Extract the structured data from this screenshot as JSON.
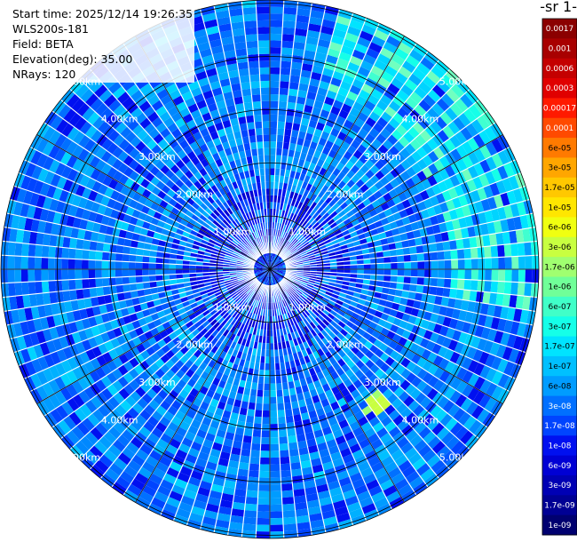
{
  "header": {
    "start_time": "Start time: 2025/12/14 19:26:35",
    "instrument": "WLS200s-181",
    "field": "Field: BETA",
    "elevation": "Elevation(deg): 35.00",
    "nrays": "NRays: 120"
  },
  "colorbar": {
    "units_label": "-1 sr-",
    "levels": [
      {
        "label": "0.0017",
        "color": "#8b0000"
      },
      {
        "label": "0.001",
        "color": "#a80000"
      },
      {
        "label": "0.0006",
        "color": "#c40000"
      },
      {
        "label": "0.0003",
        "color": "#e00000"
      },
      {
        "label": "0.00017",
        "color": "#ff1a00"
      },
      {
        "label": "0.0001",
        "color": "#ff4a00"
      },
      {
        "label": "6e-05",
        "color": "#ff7a00"
      },
      {
        "label": "3e-05",
        "color": "#ffa600"
      },
      {
        "label": "1.7e-05",
        "color": "#ffc800"
      },
      {
        "label": "1e-05",
        "color": "#ffe600"
      },
      {
        "label": "6e-06",
        "color": "#f0ff10"
      },
      {
        "label": "3e-06",
        "color": "#c8ff40"
      },
      {
        "label": "1.7e-06",
        "color": "#a0ff70"
      },
      {
        "label": "1e-06",
        "color": "#70ff98"
      },
      {
        "label": "6e-07",
        "color": "#40ffc8"
      },
      {
        "label": "3e-07",
        "color": "#15ffe8"
      },
      {
        "label": "1.7e-07",
        "color": "#00e4ff"
      },
      {
        "label": "1e-07",
        "color": "#00c0ff"
      },
      {
        "label": "6e-08",
        "color": "#009cff"
      },
      {
        "label": "3e-08",
        "color": "#0070ff"
      },
      {
        "label": "1.7e-08",
        "color": "#0044ff"
      },
      {
        "label": "1e-08",
        "color": "#0010f0"
      },
      {
        "label": "6e-09",
        "color": "#0000d4"
      },
      {
        "label": "3e-09",
        "color": "#0000b4"
      },
      {
        "label": "1.7e-09",
        "color": "#000094"
      },
      {
        "label": "1e-09",
        "color": "#000070"
      }
    ]
  },
  "chart_data": {
    "type": "heatmap",
    "projection": "polar (PPI)",
    "field": "BETA",
    "elevation_deg": 35.0,
    "n_rays": 120,
    "range_rings": [
      {
        "label": "1.00km",
        "value": 1.0
      },
      {
        "label": "2.00km",
        "value": 2.0
      },
      {
        "label": "3.00km",
        "value": 3.0
      },
      {
        "label": "4.00km",
        "value": 4.0
      },
      {
        "label": "5.00km",
        "value": 5.0
      }
    ],
    "max_range_km": 5.06,
    "grid": true,
    "value_range": [
      1e-09,
      0.0017
    ],
    "colorbar_position": "right",
    "dominant_values": "mostly 1e-08 to 1e-07 (blue); elevated 1.7e-07 to 6e-07 (cyan) in a north-east arc at ~3.5 to 5 km; a few cells near 1e-06 to 3e-06 near 3.2 km south-east"
  },
  "colors": {
    "background": "#ffffff",
    "gap": "#ffffff",
    "grid": "#000000"
  }
}
